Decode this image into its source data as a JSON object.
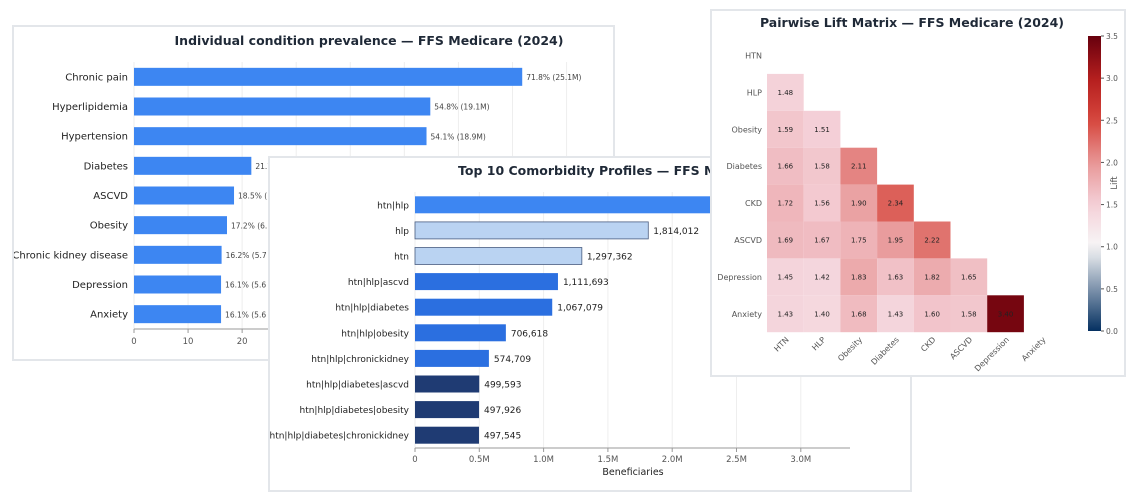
{
  "colors": {
    "bar_blue": "#3d86f2",
    "bar_light": "#bad3f2",
    "bar_dark": "#1f3b73",
    "bar_mid": "#2b6fe0"
  },
  "chart_data": [
    {
      "id": "prevalence",
      "type": "bar",
      "orientation": "horizontal",
      "title": "Individual condition prevalence — FFS Medicare (2024)",
      "categories": [
        "Chronic pain",
        "Hyperlipidemia",
        "Hypertension",
        "Diabetes",
        "ASCVD",
        "Obesity",
        "Chronic kidney disease",
        "Depression",
        "Anxiety"
      ],
      "values": [
        71.8,
        54.8,
        54.1,
        21.7,
        18.5,
        17.2,
        16.2,
        16.1,
        16.1
      ],
      "data_labels": [
        "71.8% (25.1M)",
        "54.8% (19.1M)",
        "54.1% (18.9M)",
        "21.7",
        "18.5% (",
        "17.2% (6.",
        "16.2% (5.7",
        "16.1% (5.6",
        "16.1% (5.6"
      ],
      "xticks": [
        "0",
        "10",
        "20"
      ],
      "xlim": [
        0,
        86
      ]
    },
    {
      "id": "profiles",
      "type": "bar",
      "orientation": "horizontal",
      "title": "Top 10 Comorbidity Profiles — FFS Me",
      "xlabel": "Beneficiaries",
      "categories": [
        "htn|hlp",
        "hlp",
        "htn",
        "htn|hlp|ascvd",
        "htn|hlp|diabetes",
        "htn|hlp|obesity",
        "htn|hlp|chronickidney",
        "htn|hlp|diabetes|ascvd",
        "htn|hlp|diabetes|obesity",
        "htn|hlp|diabetes|chronickidney"
      ],
      "values": [
        3100000,
        1814012,
        1297362,
        1111693,
        1067079,
        706618,
        574709,
        499593,
        497926,
        497545
      ],
      "data_labels": [
        "",
        "1,814,012",
        "1,297,362",
        "1,111,693",
        "1,067,079",
        "706,618",
        "574,709",
        "499,593",
        "497,926",
        "497,545"
      ],
      "bar_styles": [
        "blue",
        "light",
        "light",
        "mid",
        "mid",
        "mid",
        "mid",
        "dark",
        "dark",
        "dark"
      ],
      "xticks": [
        "0",
        "0.5M",
        "1.0M",
        "1.5M",
        "2.0M",
        "2.5M",
        "3.0M"
      ],
      "xlim": [
        0,
        3400000
      ]
    },
    {
      "id": "lift",
      "type": "heatmap",
      "title": "Pairwise Lift Matrix — FFS Medicare (2024)",
      "rows": [
        "HTN",
        "HLP",
        "Obesity",
        "Diabetes",
        "CKD",
        "ASCVD",
        "Depression",
        "Anxiety"
      ],
      "cols": [
        "HTN",
        "HLP",
        "Obesity",
        "Diabetes",
        "CKD",
        "ASCVD",
        "Depression",
        "Anxiety"
      ],
      "values": [
        [],
        [
          1.48
        ],
        [
          1.59,
          1.51
        ],
        [
          1.66,
          1.58,
          2.11
        ],
        [
          1.72,
          1.56,
          1.9,
          2.34
        ],
        [
          1.69,
          1.67,
          1.75,
          1.95,
          2.22
        ],
        [
          1.45,
          1.42,
          1.83,
          1.63,
          1.82,
          1.65
        ],
        [
          1.43,
          1.4,
          1.68,
          1.43,
          1.6,
          1.58,
          3.4
        ]
      ],
      "colorbar_label": "Lift",
      "colorbar_ticks": [
        "0.0",
        "0.5",
        "1.0",
        "1.5",
        "2.0",
        "2.5",
        "3.0",
        "3.5"
      ],
      "vmin": 0,
      "vcenter": 1,
      "vmax": 3.5
    }
  ],
  "stray_tick": "1"
}
